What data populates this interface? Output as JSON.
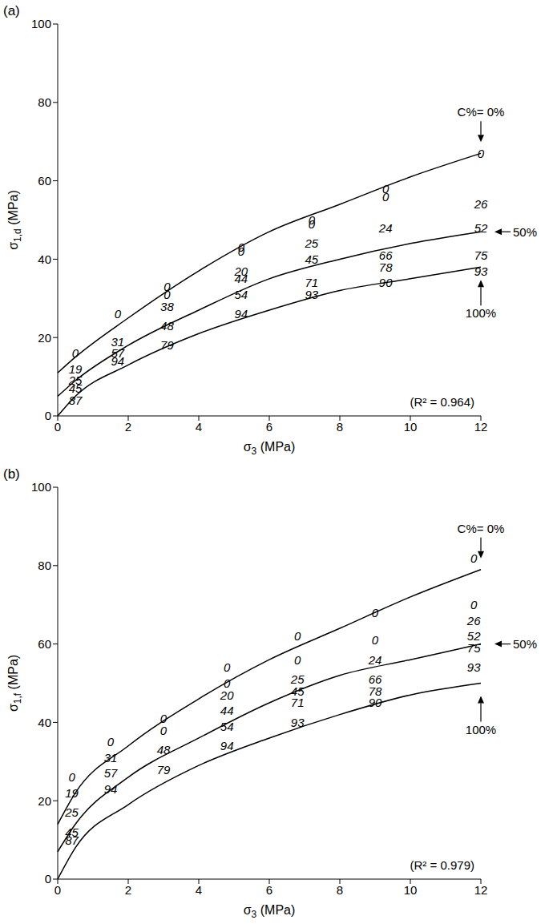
{
  "chart_data": [
    {
      "type": "scatter",
      "title": "(a)",
      "x_label": "σ3 (MPa)",
      "y_label": "σ1,d (MPa)",
      "xlim": [
        0,
        12
      ],
      "xticks": [
        0,
        2,
        4,
        6,
        8,
        10,
        12
      ],
      "ylim": [
        0,
        100
      ],
      "yticks": [
        0,
        20,
        40,
        60,
        80,
        100
      ],
      "grid": false,
      "annotation": "(R² = 0.964)",
      "series": [
        {
          "name": "C%= 0%",
          "color": "#000000",
          "x": [
            0,
            0.5,
            2,
            4,
            6,
            8,
            10,
            12
          ],
          "values": [
            11,
            15,
            25,
            37,
            47,
            54,
            61,
            67
          ]
        },
        {
          "name": "50%",
          "color": "#000000",
          "x": [
            0,
            0.5,
            2,
            4,
            6,
            8,
            10,
            12
          ],
          "values": [
            5,
            9,
            18,
            27,
            35,
            40,
            44,
            47
          ]
        },
        {
          "name": "100%",
          "color": "#000000",
          "x": [
            0,
            0.5,
            2,
            4,
            6,
            8,
            10,
            12
          ],
          "values": [
            0,
            5,
            13,
            21,
            27,
            32,
            35,
            38
          ]
        }
      ],
      "points": [
        {
          "x": 0.5,
          "y": 16,
          "label": 0
        },
        {
          "x": 1.7,
          "y": 26,
          "label": 0
        },
        {
          "x": 3.1,
          "y": 33,
          "label": 0
        },
        {
          "x": 3.1,
          "y": 31,
          "label": 0
        },
        {
          "x": 5.2,
          "y": 43,
          "label": 0
        },
        {
          "x": 5.2,
          "y": 42,
          "label": 0
        },
        {
          "x": 7.2,
          "y": 50,
          "label": 0
        },
        {
          "x": 7.2,
          "y": 49,
          "label": 0
        },
        {
          "x": 9.3,
          "y": 58,
          "label": 0
        },
        {
          "x": 9.3,
          "y": 56,
          "label": 0
        },
        {
          "x": 12,
          "y": 67,
          "label": 0
        },
        {
          "x": 12,
          "y": 54,
          "label": 26
        },
        {
          "x": 12,
          "y": 48,
          "label": 52
        },
        {
          "x": 12,
          "y": 41,
          "label": 75
        },
        {
          "x": 12,
          "y": 37,
          "label": 93
        },
        {
          "x": 9.3,
          "y": 48,
          "label": 24
        },
        {
          "x": 9.3,
          "y": 41,
          "label": 66
        },
        {
          "x": 9.3,
          "y": 38,
          "label": 78
        },
        {
          "x": 9.3,
          "y": 34,
          "label": 90
        },
        {
          "x": 7.2,
          "y": 44,
          "label": 25
        },
        {
          "x": 7.2,
          "y": 40,
          "label": 45
        },
        {
          "x": 7.2,
          "y": 34,
          "label": 71
        },
        {
          "x": 7.2,
          "y": 31,
          "label": 93
        },
        {
          "x": 5.2,
          "y": 37,
          "label": 20
        },
        {
          "x": 5.2,
          "y": 35,
          "label": 44
        },
        {
          "x": 5.2,
          "y": 31,
          "label": 54
        },
        {
          "x": 5.2,
          "y": 26,
          "label": 94
        },
        {
          "x": 3.1,
          "y": 28,
          "label": 38
        },
        {
          "x": 3.1,
          "y": 23,
          "label": 48
        },
        {
          "x": 3.1,
          "y": 18,
          "label": 79
        },
        {
          "x": 1.7,
          "y": 19,
          "label": 31
        },
        {
          "x": 1.7,
          "y": 16,
          "label": 57
        },
        {
          "x": 1.7,
          "y": 14,
          "label": 94
        },
        {
          "x": 0.5,
          "y": 12,
          "label": 19
        },
        {
          "x": 0.5,
          "y": 9,
          "label": 25
        },
        {
          "x": 0.5,
          "y": 7,
          "label": 45
        },
        {
          "x": 0.5,
          "y": 4,
          "label": 87
        }
      ]
    },
    {
      "type": "scatter",
      "title": "(b)",
      "x_label": "σ3 (MPa)",
      "y_label": "σ1,f (MPa)",
      "xlim": [
        0,
        12
      ],
      "xticks": [
        0,
        2,
        4,
        6,
        8,
        10,
        12
      ],
      "ylim": [
        0,
        100
      ],
      "yticks": [
        0,
        20,
        40,
        60,
        80,
        100
      ],
      "grid": false,
      "annotation": "(R² = 0.979)",
      "series": [
        {
          "name": "C%= 0%",
          "color": "#000000",
          "x": [
            0,
            0.5,
            2,
            4,
            6,
            8,
            10,
            12
          ],
          "values": [
            14,
            22,
            34,
            46,
            56,
            64,
            72,
            79
          ]
        },
        {
          "name": "50%",
          "color": "#000000",
          "x": [
            0,
            0.5,
            2,
            4,
            6,
            8,
            10,
            12
          ],
          "values": [
            7,
            14,
            26,
            36,
            45,
            52,
            56,
            60
          ]
        },
        {
          "name": "100%",
          "color": "#000000",
          "x": [
            0,
            0.5,
            2,
            4,
            6,
            8,
            10,
            12
          ],
          "values": [
            0,
            8,
            19,
            29,
            36,
            42,
            47,
            50
          ]
        }
      ],
      "points": [
        {
          "x": 0.4,
          "y": 26,
          "label": 0
        },
        {
          "x": 1.5,
          "y": 35,
          "label": 0
        },
        {
          "x": 3.0,
          "y": 41,
          "label": 0
        },
        {
          "x": 3.0,
          "y": 38,
          "label": 0
        },
        {
          "x": 4.8,
          "y": 54,
          "label": 0
        },
        {
          "x": 4.8,
          "y": 50,
          "label": 0
        },
        {
          "x": 6.8,
          "y": 62,
          "label": 0
        },
        {
          "x": 6.8,
          "y": 56,
          "label": 0
        },
        {
          "x": 9,
          "y": 68,
          "label": 0
        },
        {
          "x": 9,
          "y": 61,
          "label": 0
        },
        {
          "x": 11.8,
          "y": 82,
          "label": 0
        },
        {
          "x": 11.8,
          "y": 70,
          "label": 0
        },
        {
          "x": 11.8,
          "y": 66,
          "label": 26
        },
        {
          "x": 11.8,
          "y": 62,
          "label": 52
        },
        {
          "x": 11.8,
          "y": 59,
          "label": 75
        },
        {
          "x": 11.8,
          "y": 54,
          "label": 93
        },
        {
          "x": 9,
          "y": 56,
          "label": 24
        },
        {
          "x": 9,
          "y": 51,
          "label": 66
        },
        {
          "x": 9,
          "y": 48,
          "label": 78
        },
        {
          "x": 9,
          "y": 45,
          "label": 90
        },
        {
          "x": 6.8,
          "y": 51,
          "label": 25
        },
        {
          "x": 6.8,
          "y": 48,
          "label": 45
        },
        {
          "x": 6.8,
          "y": 45,
          "label": 71
        },
        {
          "x": 6.8,
          "y": 40,
          "label": 93
        },
        {
          "x": 4.8,
          "y": 47,
          "label": 20
        },
        {
          "x": 4.8,
          "y": 43,
          "label": 44
        },
        {
          "x": 4.8,
          "y": 39,
          "label": 54
        },
        {
          "x": 4.8,
          "y": 34,
          "label": 94
        },
        {
          "x": 3.0,
          "y": 33,
          "label": 48
        },
        {
          "x": 3.0,
          "y": 28,
          "label": 79
        },
        {
          "x": 1.5,
          "y": 31,
          "label": 31
        },
        {
          "x": 1.5,
          "y": 27,
          "label": 57
        },
        {
          "x": 1.5,
          "y": 23,
          "label": 94
        },
        {
          "x": 0.4,
          "y": 22,
          "label": 19
        },
        {
          "x": 0.4,
          "y": 17,
          "label": 25
        },
        {
          "x": 0.4,
          "y": 12,
          "label": 45
        },
        {
          "x": 0.4,
          "y": 10,
          "label": 87
        }
      ]
    }
  ]
}
